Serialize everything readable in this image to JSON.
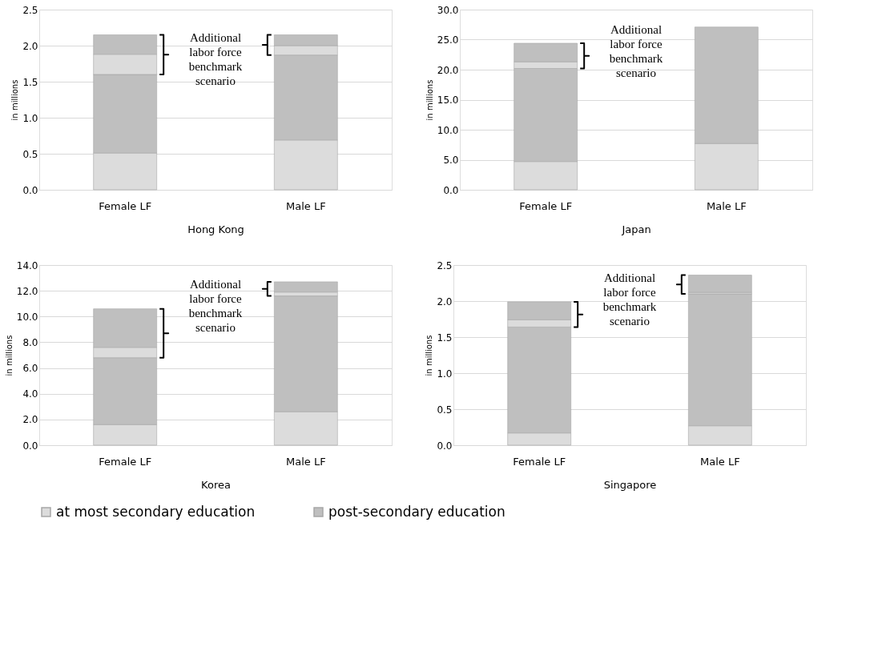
{
  "chart_data": [
    {
      "type": "bar",
      "stacked": true,
      "xlabel": "Hong Kong",
      "ylabel": "in millions",
      "categories": [
        "Female LF",
        "Male LF"
      ],
      "ylim": [
        0,
        2.5
      ],
      "yticks": [
        {
          "value": 0,
          "label": "0.0"
        },
        {
          "value": 0.5,
          "label": "0.5"
        },
        {
          "value": 1,
          "label": "1.0"
        },
        {
          "value": 1.5,
          "label": "1.5"
        },
        {
          "value": 2,
          "label": "2.0"
        },
        {
          "value": 2.5,
          "label": "2.5"
        }
      ],
      "grid": "y",
      "legend": "bottom",
      "series": [
        {
          "name": "at most secondary education",
          "color": "#dcdcdc",
          "values": [
            0.51,
            0.69
          ]
        },
        {
          "name": "post-secondary education",
          "color": "#bfbfbf",
          "values": [
            1.09,
            1.18
          ]
        },
        {
          "color": "#dcdcdc",
          "values": [
            0.28,
            0.13
          ]
        },
        {
          "color": "#bfbfbf",
          "values": [
            0.27,
            0.15
          ]
        }
      ],
      "annotations": [
        "Additional labor force benchmark scenario"
      ]
    },
    {
      "type": "bar",
      "stacked": true,
      "xlabel": "Japan",
      "ylabel": "in millions",
      "categories": [
        "Female LF",
        "Male LF"
      ],
      "ylim": [
        0,
        30
      ],
      "yticks": [
        {
          "value": 0,
          "label": "0.0"
        },
        {
          "value": 5,
          "label": "5.0"
        },
        {
          "value": 10,
          "label": "10.0"
        },
        {
          "value": 15,
          "label": "15.0"
        },
        {
          "value": 20,
          "label": "20.0"
        },
        {
          "value": 25,
          "label": "25.0"
        },
        {
          "value": 30,
          "label": "30.0"
        }
      ],
      "grid": "y",
      "legend": "bottom",
      "series": [
        {
          "name": "at most secondary education",
          "color": "#dcdcdc",
          "values": [
            4.7,
            7.7
          ]
        },
        {
          "name": "post-secondary education",
          "color": "#bfbfbf",
          "values": [
            15.5,
            19.4
          ]
        },
        {
          "color": "#dcdcdc",
          "values": [
            1.1,
            null
          ]
        },
        {
          "color": "#bfbfbf",
          "values": [
            3.1,
            null
          ]
        }
      ],
      "annotations": [
        "Additional labor force benchmark scenario"
      ]
    },
    {
      "type": "bar",
      "stacked": true,
      "xlabel": "Korea",
      "ylabel": "in millions",
      "categories": [
        "Female LF",
        "Male LF"
      ],
      "ylim": [
        0,
        14
      ],
      "yticks": [
        {
          "value": 0,
          "label": "0.0"
        },
        {
          "value": 2,
          "label": "2.0"
        },
        {
          "value": 4,
          "label": "4.0"
        },
        {
          "value": 6,
          "label": "6.0"
        },
        {
          "value": 8,
          "label": "8.0"
        },
        {
          "value": 10,
          "label": "10.0"
        },
        {
          "value": 12,
          "label": "12.0"
        },
        {
          "value": 14,
          "label": "14.0"
        }
      ],
      "grid": "y",
      "legend": "bottom",
      "series": [
        {
          "name": "at most secondary education",
          "color": "#dcdcdc",
          "values": [
            1.6,
            2.6
          ]
        },
        {
          "name": "post-secondary education",
          "color": "#bfbfbf",
          "values": [
            5.2,
            9.0
          ]
        },
        {
          "color": "#dcdcdc",
          "values": [
            0.8,
            0.3
          ]
        },
        {
          "color": "#bfbfbf",
          "values": [
            3.0,
            0.8
          ]
        }
      ],
      "annotations": [
        "Additional labor force benchmark scenario"
      ]
    },
    {
      "type": "bar",
      "stacked": true,
      "xlabel": "Singapore",
      "ylabel": "in millions",
      "categories": [
        "Female LF",
        "Male LF"
      ],
      "ylim": [
        0,
        2.5
      ],
      "yticks": [
        {
          "value": 0,
          "label": "0.0"
        },
        {
          "value": 0.5,
          "label": "0.5"
        },
        {
          "value": 1,
          "label": "1.0"
        },
        {
          "value": 1.5,
          "label": "1.5"
        },
        {
          "value": 2,
          "label": "2.0"
        },
        {
          "value": 2.5,
          "label": "2.5"
        }
      ],
      "grid": "y",
      "legend": "bottom",
      "series": [
        {
          "name": "at most secondary education",
          "color": "#dcdcdc",
          "values": [
            0.17,
            0.27
          ]
        },
        {
          "name": "post-secondary education",
          "color": "#bfbfbf",
          "values": [
            1.47,
            1.83
          ]
        },
        {
          "color": "#dcdcdc",
          "values": [
            0.1,
            0.02
          ]
        },
        {
          "color": "#bfbfbf",
          "values": [
            0.25,
            0.24
          ]
        }
      ],
      "annotations": [
        "Additional labor force benchmark scenario"
      ]
    }
  ]
}
